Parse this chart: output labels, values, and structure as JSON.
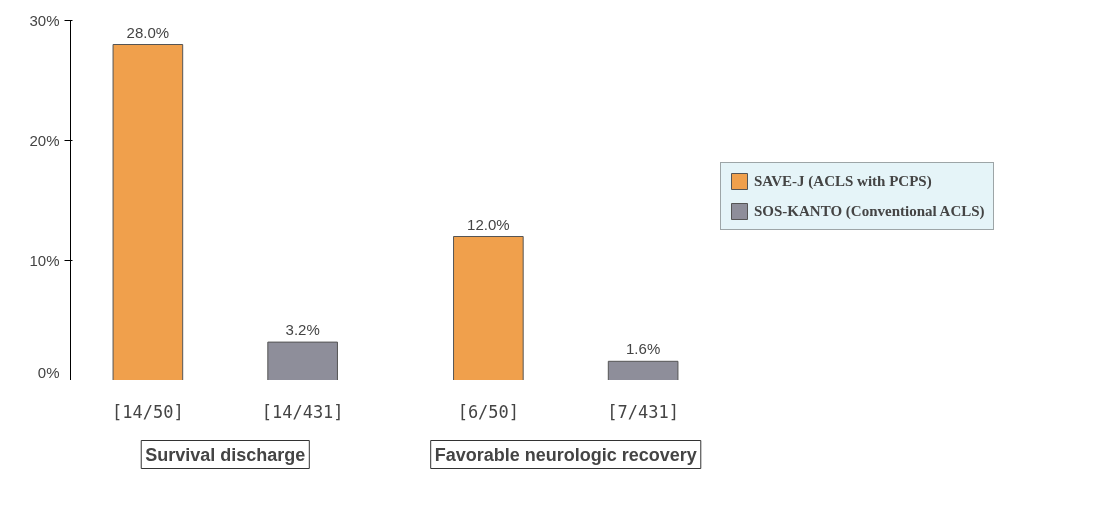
{
  "chart_data": {
    "type": "bar",
    "categories": [
      "Survival discharge",
      "Favorable neurologic recovery"
    ],
    "series": [
      {
        "name": "SAVE-J (ACLS with PCPS)",
        "color": "#f0a04c",
        "values": [
          28.0,
          12.0
        ],
        "value_labels": [
          "28.0%",
          "12.0%"
        ]
      },
      {
        "name": "SOS-KANTO (Conventional ACLS)",
        "color": "#8e8e9a",
        "values": [
          3.2,
          1.6
        ],
        "value_labels": [
          "3.2%",
          "1.6%"
        ]
      }
    ],
    "annotations": [
      "[14/50]",
      "[14/431]",
      "[6/50]",
      "[7/431]"
    ],
    "ylim": [
      0,
      30
    ],
    "yticks": [
      {
        "value": 0,
        "label": "0%"
      },
      {
        "value": 10,
        "label": "10%"
      },
      {
        "value": 20,
        "label": "20%"
      },
      {
        "value": 30,
        "label": "30%"
      }
    ],
    "grid": false,
    "legend": "right",
    "tick_labels": "y"
  }
}
